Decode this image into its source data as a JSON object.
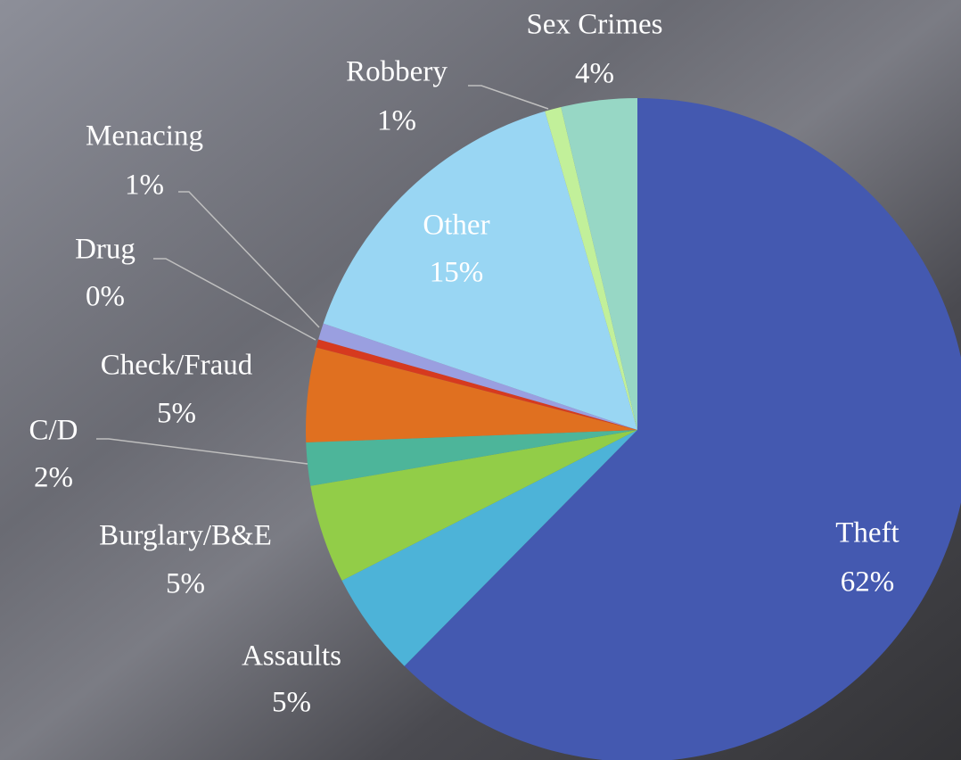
{
  "chart_data": {
    "type": "pie",
    "categories": [
      "Theft",
      "Assaults",
      "Burglary/B&E",
      "C/D",
      "Check/Fraud",
      "Drug",
      "Menacing",
      "Other",
      "Robbery",
      "Sex Crimes"
    ],
    "values": [
      62.4,
      5.1,
      4.8,
      2.1,
      4.6,
      0.4,
      0.8,
      15.3,
      0.8,
      3.7
    ],
    "value_labels": [
      "62%",
      "5%",
      "5%",
      "2%",
      "5%",
      "0%",
      "1%",
      "15%",
      "1%",
      "4%"
    ],
    "colors": [
      "#4459b0",
      "#4db3d8",
      "#92cd48",
      "#4db59a",
      "#e07020",
      "#d63a1f",
      "#9a9fe0",
      "#99d6f3",
      "#c2f09a",
      "#97d7c5"
    ]
  }
}
